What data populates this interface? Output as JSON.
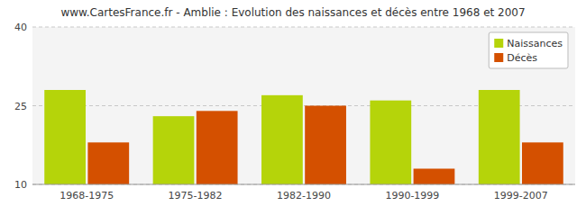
{
  "chart_data": {
    "type": "bar",
    "title": "www.CartesFrance.fr - Amblie : Evolution des naissances et décès entre 1968 et 2007",
    "categories": [
      "1968-1975",
      "1975-1982",
      "1982-1990",
      "1990-1999",
      "1999-2007"
    ],
    "series": [
      {
        "name": "Naissances",
        "color": "#b5d40a",
        "values": [
          28,
          23,
          27,
          26,
          28
        ]
      },
      {
        "name": "Décès",
        "color": "#d45000",
        "values": [
          18,
          24,
          25,
          13,
          18
        ]
      }
    ],
    "ylim": [
      10,
      40
    ],
    "yticks": [
      10,
      25,
      40
    ],
    "grid": true,
    "legend": "upper right"
  }
}
